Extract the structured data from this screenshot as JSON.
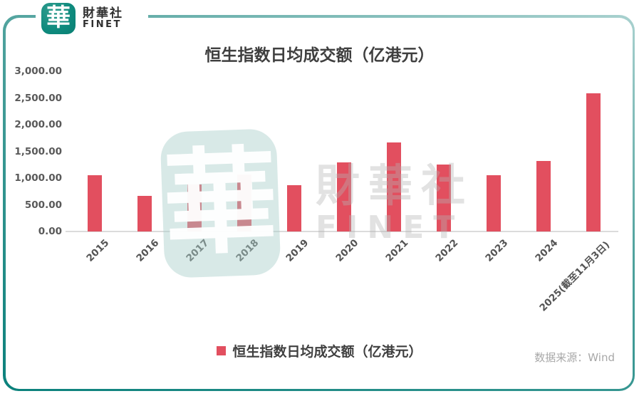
{
  "brand": {
    "logo_char": "華",
    "name_cn": "財華社",
    "name_en": "FINET"
  },
  "watermark": {
    "logo_char": "華",
    "text_cn": "財華社",
    "text_en": "FINET"
  },
  "chart_data": {
    "type": "bar",
    "title": "恒生指数日均成交额（亿港元）",
    "categories": [
      "2015",
      "2016",
      "2017",
      "2018",
      "2019",
      "2020",
      "2021",
      "2022",
      "2023",
      "2024",
      "2025(截至11月3日)"
    ],
    "values": [
      1050,
      669,
      882,
      1074,
      872,
      1295,
      1667,
      1249,
      1050,
      1318,
      2585
    ],
    "series_name": "恒生指数日均成交额（亿港元）",
    "ylim": [
      0,
      3000
    ],
    "ytick_step": 500,
    "ytick_labels": [
      "3,000.00",
      "2,500.00",
      "2,000.00",
      "1,500.00",
      "1,000.00",
      "500.00",
      "0.00"
    ],
    "xlabel": "",
    "ylabel": "",
    "grid": false,
    "legend_position": "bottom",
    "bar_color": "#e24f5f"
  },
  "legend": {
    "label": "恒生指数日均成交额（亿港元）",
    "swatch_color": "#e24f5f"
  },
  "source": {
    "text": "数据来源：Wind"
  },
  "colors": {
    "bar": "#e24f5f",
    "frame_teal_dark": "#0b817c",
    "frame_teal_light": "#a9d1cf",
    "logo_teal": "#0e8a7d",
    "title_text": "#3f3f3f",
    "axis_text": "#595959",
    "axis_line": "#dbdbdb",
    "source_text": "#a8a8a8"
  }
}
